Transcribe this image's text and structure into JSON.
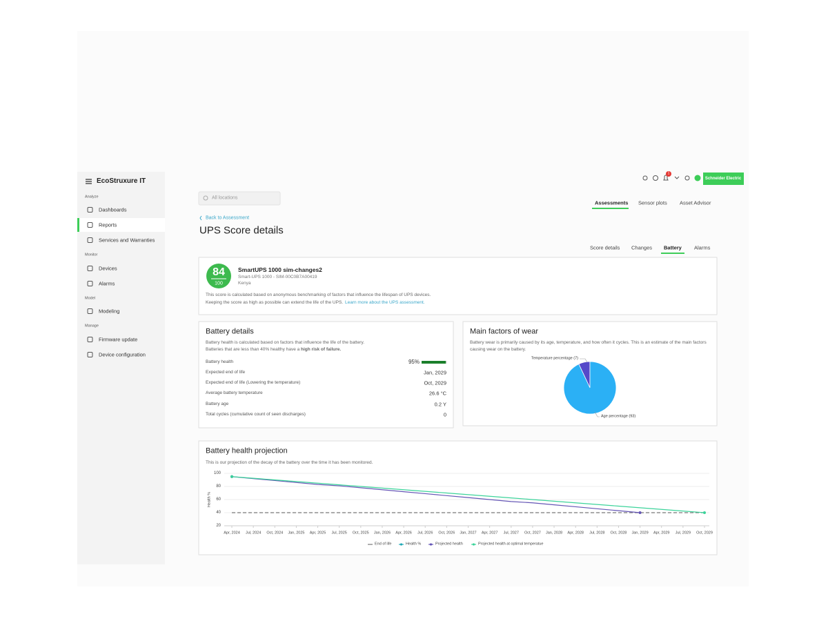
{
  "header": {
    "logo": "EcoStruxure IT",
    "notification_count": 1,
    "brand": "Schneider Electric"
  },
  "sidebar": {
    "sections": [
      {
        "title": "Analyze",
        "items": [
          "Dashboards",
          "Reports",
          "Services and Warranties"
        ]
      },
      {
        "title": "Monitor",
        "items": [
          "Devices",
          "Alarms"
        ]
      },
      {
        "title": "Model",
        "items": [
          "Modeling"
        ]
      },
      {
        "title": "Manage",
        "items": [
          "Firmware update",
          "Device configuration"
        ]
      }
    ]
  },
  "location_filter": "All locations",
  "top_tabs": [
    "Assessments",
    "Sensor plots",
    "Asset Advisor"
  ],
  "back_link": "Back to Assessment",
  "title": "UPS Score details",
  "sub_tabs": [
    "Score details",
    "Changes",
    "Battery",
    "Alarms"
  ],
  "score_card": {
    "score": 84,
    "max": 100,
    "name": "SmartUPS 1000 sim-changes2",
    "model": "Smart-UPS 1000 - SIM-00C0B7A00419",
    "location": "Kenya",
    "description": [
      "This score is calculated based on anonymous benchmarking of factors that influence the lifespan of UPS devices.",
      "Keeping the score as high as possible can extend the life of the UPS."
    ],
    "link": "Learn more about the UPS assessment."
  },
  "battery_details": {
    "title": "Battery details",
    "description": [
      "Battery health is calculated based on factors that influence the life of the battery.",
      "Batteries that are less than 40% healthy have a "
    ],
    "emphasis": "high risk of failure.",
    "rows": [
      {
        "label": "Battery health",
        "value": 95,
        "value_label": "95%"
      },
      {
        "label": "Expected end of life",
        "value": "Jan, 2029"
      },
      {
        "label": "Expected end of life (Lowering the temperature)",
        "value": "Oct, 2029"
      },
      {
        "label": "Average battery temperature",
        "value": "26.6 °C"
      },
      {
        "label": "Battery age",
        "value": "0.2 Y"
      },
      {
        "label": "Total cycles (cumulative count of seen discharges)",
        "value": "0"
      }
    ]
  },
  "wear": {
    "title": "Main factors of wear",
    "description": [
      "Battery wear is primarily caused by its age, temperature, and how often it cycles. This is an estimate of the main factors",
      "causing wear on the battery."
    ],
    "chart": {
      "type": "pie",
      "values": [
        7,
        93
      ],
      "value_labels": [
        "Temperature percentage (7)",
        "Age percentage (93)"
      ],
      "colors": [
        "#5549c9",
        "#2bb0f5"
      ]
    }
  },
  "projection": {
    "title": "Battery health projection",
    "description": "This is our projection of the decay of the battery over the time it has been monitored.",
    "chart": {
      "type": "line",
      "y_label": "Health %",
      "categories": [
        "Apr, 2024",
        "Jul, 2024",
        "Oct, 2024",
        "Jan, 2025",
        "Apr, 2025",
        "Jul, 2025",
        "Oct, 2025",
        "Jan, 2026",
        "Apr, 2026",
        "Jul, 2026",
        "Oct, 2026",
        "Jan, 2027",
        "Apr, 2027",
        "Jul, 2027",
        "Oct, 2027",
        "Jan, 2028",
        "Apr, 2028",
        "Jul, 2028",
        "Oct, 2028",
        "Jan, 2029",
        "Apr, 2029",
        "Jul, 2029",
        "Oct, 2029"
      ],
      "ylim": [
        20,
        100
      ],
      "yticks": [
        20,
        40,
        60,
        80,
        100
      ],
      "grid": true,
      "series": [
        {
          "name": "End of life",
          "color": "#777777",
          "dashed": true,
          "markers": false,
          "values": [
            40,
            40,
            40,
            40,
            40,
            40,
            40,
            40,
            40,
            40,
            40,
            40,
            40,
            40,
            40,
            40,
            40,
            40,
            40,
            40,
            40,
            40,
            40
          ]
        },
        {
          "name": "Health %",
          "color": "#1fa9b5",
          "dashed": false,
          "markers": true,
          "values": [
            95,
            null,
            null,
            null,
            null,
            null,
            null,
            null,
            null,
            null,
            null,
            null,
            null,
            null,
            null,
            null,
            null,
            null,
            null,
            null,
            null,
            null,
            null
          ]
        },
        {
          "name": "Projected health",
          "color": "#6455b5",
          "dashed": false,
          "markers": true,
          "values": [
            95,
            92,
            89,
            86,
            83,
            81,
            78,
            75,
            72,
            69,
            66,
            63,
            60,
            57,
            55,
            52,
            49,
            46,
            43,
            40,
            null,
            null,
            null
          ]
        },
        {
          "name": "Projected health at optimal temperatue",
          "color": "#3bd39a",
          "dashed": false,
          "markers": true,
          "values": [
            95,
            92.5,
            90,
            87.5,
            85,
            82.5,
            80,
            77.5,
            75,
            72.5,
            70,
            67.5,
            65,
            62.5,
            60,
            57.5,
            55,
            52.5,
            50,
            47.5,
            45,
            42.5,
            40
          ]
        }
      ]
    }
  }
}
